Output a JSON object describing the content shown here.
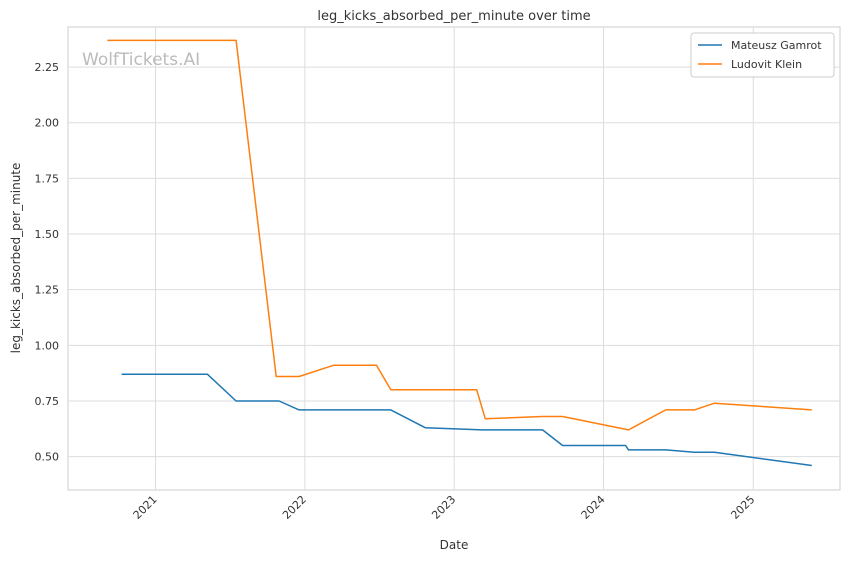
{
  "chart_data": {
    "type": "line",
    "title": "leg_kicks_absorbed_per_minute over time",
    "xlabel": "Date",
    "ylabel": "leg_kicks_absorbed_per_minute",
    "watermark": "WolfTickets.AI",
    "x_range": [
      "2020-06-01",
      "2025-08-01"
    ],
    "ylim": [
      0.35,
      2.43
    ],
    "x_ticks": [
      {
        "date": "2021-01-01",
        "label": "2021"
      },
      {
        "date": "2022-01-01",
        "label": "2022"
      },
      {
        "date": "2023-01-01",
        "label": "2023"
      },
      {
        "date": "2024-01-01",
        "label": "2024"
      },
      {
        "date": "2025-01-01",
        "label": "2025"
      }
    ],
    "y_ticks": [
      {
        "value": 0.5,
        "label": "0.50"
      },
      {
        "value": 0.75,
        "label": "0.75"
      },
      {
        "value": 1.0,
        "label": "1.00"
      },
      {
        "value": 1.25,
        "label": "1.25"
      },
      {
        "value": 1.5,
        "label": "1.50"
      },
      {
        "value": 1.75,
        "label": "1.75"
      },
      {
        "value": 2.0,
        "label": "2.00"
      },
      {
        "value": 2.25,
        "label": "2.25"
      }
    ],
    "grid": true,
    "legend_position": "top-right",
    "series": [
      {
        "name": "Mateusz Gamrot",
        "color": "#1f77b4",
        "points": [
          {
            "x": "2020-10-10",
            "y": 0.87
          },
          {
            "x": "2021-05-08",
            "y": 0.87
          },
          {
            "x": "2021-07-17",
            "y": 0.75
          },
          {
            "x": "2021-10-30",
            "y": 0.75
          },
          {
            "x": "2021-12-18",
            "y": 0.71
          },
          {
            "x": "2022-07-30",
            "y": 0.71
          },
          {
            "x": "2022-10-22",
            "y": 0.63
          },
          {
            "x": "2023-03-11",
            "y": 0.62
          },
          {
            "x": "2023-08-05",
            "y": 0.62
          },
          {
            "x": "2023-09-23",
            "y": 0.55
          },
          {
            "x": "2024-02-24",
            "y": 0.55
          },
          {
            "x": "2024-03-02",
            "y": 0.53
          },
          {
            "x": "2024-06-01",
            "y": 0.53
          },
          {
            "x": "2024-08-10",
            "y": 0.52
          },
          {
            "x": "2024-09-28",
            "y": 0.52
          },
          {
            "x": "2025-05-24",
            "y": 0.46
          }
        ]
      },
      {
        "name": "Ludovit Klein",
        "color": "#ff7f0e",
        "points": [
          {
            "x": "2020-09-05",
            "y": 2.37
          },
          {
            "x": "2021-07-17",
            "y": 2.37
          },
          {
            "x": "2021-10-23",
            "y": 0.86
          },
          {
            "x": "2021-12-18",
            "y": 0.86
          },
          {
            "x": "2022-03-12",
            "y": 0.91
          },
          {
            "x": "2022-06-25",
            "y": 0.91
          },
          {
            "x": "2022-07-30",
            "y": 0.8
          },
          {
            "x": "2023-02-25",
            "y": 0.8
          },
          {
            "x": "2023-03-18",
            "y": 0.67
          },
          {
            "x": "2023-08-05",
            "y": 0.68
          },
          {
            "x": "2023-09-23",
            "y": 0.68
          },
          {
            "x": "2024-03-02",
            "y": 0.62
          },
          {
            "x": "2024-06-01",
            "y": 0.71
          },
          {
            "x": "2024-08-10",
            "y": 0.71
          },
          {
            "x": "2024-09-28",
            "y": 0.74
          },
          {
            "x": "2025-05-24",
            "y": 0.71
          }
        ]
      }
    ]
  }
}
